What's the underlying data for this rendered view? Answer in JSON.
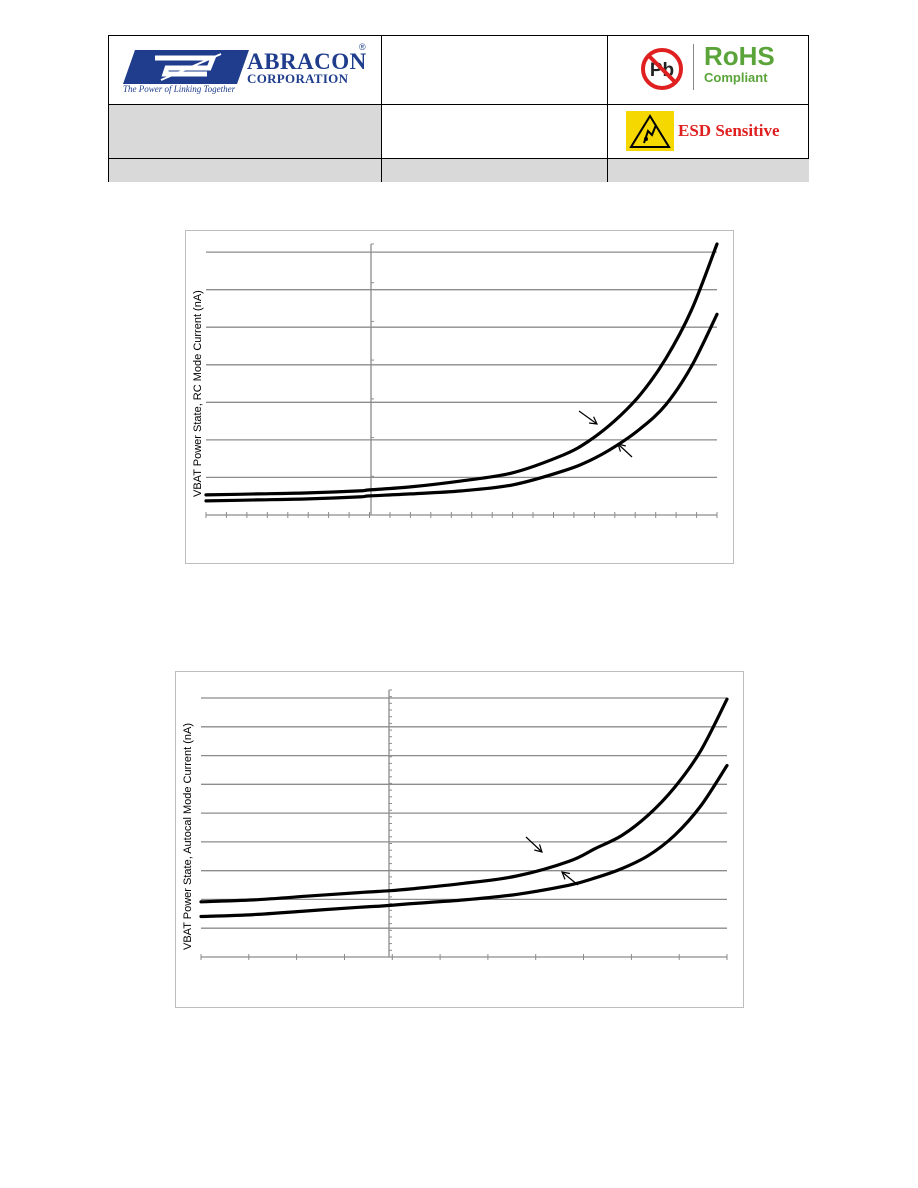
{
  "header": {
    "logo": {
      "name_line1": "ABRACON",
      "name_line2": "CORPORATION",
      "registered": "®",
      "tagline": "The Power of Linking Together"
    },
    "rohs": {
      "title": "RoHS",
      "subtitle": "Compliant",
      "pb_mark": "Pb"
    },
    "esd": {
      "label": "ESD Sensitive"
    }
  },
  "charts": [
    {
      "ylabel": "VBAT Power State, RC Mode Current  (nA)",
      "chart_data": {
        "type": "line",
        "ylabel": "VBAT Power State, RC Mode Current  (nA)",
        "xlabel": "",
        "x": [
          0,
          0.1,
          0.2,
          0.3,
          0.32,
          0.4,
          0.5,
          0.6,
          0.7,
          0.75,
          0.8,
          0.85,
          0.9,
          0.95,
          1.0
        ],
        "series": [
          {
            "values": [
              0.1,
              0.105,
              0.11,
              0.12,
              0.125,
              0.14,
              0.17,
              0.21,
              0.3,
              0.37,
              0.47,
              0.6,
              0.78,
              1.02,
              1.35
            ]
          },
          {
            "values": [
              0.07,
              0.075,
              0.08,
              0.09,
              0.095,
              0.105,
              0.12,
              0.15,
              0.22,
              0.27,
              0.34,
              0.43,
              0.55,
              0.74,
              1.0
            ]
          }
        ],
        "ylim": [
          0,
          1.35
        ],
        "xlim": [
          0,
          1
        ],
        "grid": "horizontal"
      }
    },
    {
      "ylabel": "VBAT Power State, Autocal Mode Current  (nA)",
      "chart_data": {
        "type": "line",
        "ylabel": "VBAT Power State, Autocal Mode Current  (nA)",
        "xlabel": "",
        "x": [
          0,
          0.1,
          0.2,
          0.3,
          0.36,
          0.4,
          0.5,
          0.6,
          0.7,
          0.75,
          0.8,
          0.85,
          0.9,
          0.95,
          1.0
        ],
        "series": [
          {
            "values": [
              0.3,
              0.31,
              0.33,
              0.35,
              0.36,
              0.37,
              0.4,
              0.44,
              0.52,
              0.59,
              0.66,
              0.77,
              0.92,
              1.12,
              1.4
            ]
          },
          {
            "values": [
              0.22,
              0.23,
              0.25,
              0.27,
              0.28,
              0.29,
              0.31,
              0.34,
              0.39,
              0.43,
              0.48,
              0.55,
              0.66,
              0.82,
              1.04
            ]
          }
        ],
        "ylim": [
          0,
          1.45
        ],
        "xlim": [
          0,
          1
        ],
        "grid": "horizontal"
      }
    }
  ]
}
